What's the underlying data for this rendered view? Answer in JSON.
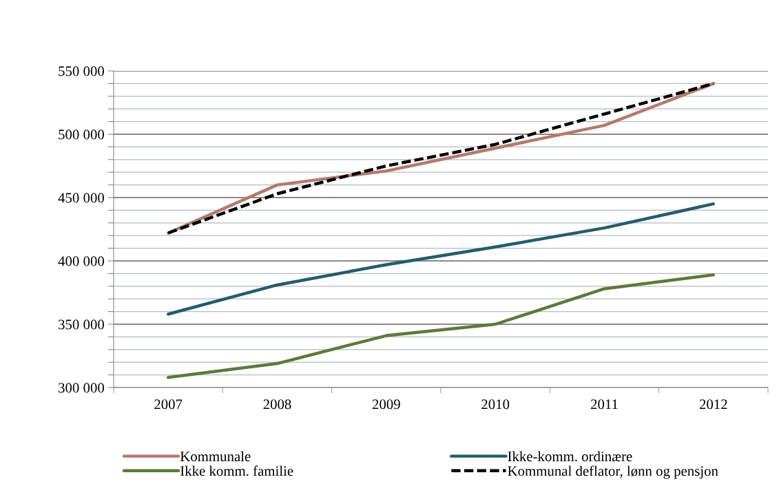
{
  "chart_data": {
    "type": "line",
    "categories": [
      "2007",
      "2008",
      "2009",
      "2010",
      "2011",
      "2012"
    ],
    "series": [
      {
        "name": "Kommunale",
        "color": "#b8786a",
        "values": [
          422000,
          460000,
          471000,
          489000,
          507000,
          540000
        ]
      },
      {
        "name": "Ikke-komm. ordinære",
        "color": "#215d6e",
        "values": [
          358000,
          381000,
          397000,
          411000,
          426000,
          445000
        ]
      },
      {
        "name": "Ikke komm. familie",
        "color": "#5b7b35",
        "values": [
          308000,
          319000,
          341000,
          350000,
          378000,
          389000
        ]
      },
      {
        "name": "Kommunal deflator, lønn og pensjon",
        "color": "#000000",
        "line_style": "dashed",
        "values": [
          422000,
          453000,
          475000,
          492000,
          516000,
          540000
        ]
      }
    ],
    "ylim": [
      300000,
      550000
    ],
    "yticks": [
      {
        "value": 300000,
        "label": "300 000"
      },
      {
        "value": 310000,
        "label": null
      },
      {
        "value": 320000,
        "label": null
      },
      {
        "value": 330000,
        "label": null
      },
      {
        "value": 340000,
        "label": null
      },
      {
        "value": 350000,
        "label": "350 000"
      },
      {
        "value": 360000,
        "label": null
      },
      {
        "value": 370000,
        "label": null
      },
      {
        "value": 380000,
        "label": null
      },
      {
        "value": 390000,
        "label": null
      },
      {
        "value": 400000,
        "label": "400 000"
      },
      {
        "value": 410000,
        "label": null
      },
      {
        "value": 420000,
        "label": null
      },
      {
        "value": 430000,
        "label": null
      },
      {
        "value": 440000,
        "label": null
      },
      {
        "value": 450000,
        "label": "450 000"
      },
      {
        "value": 460000,
        "label": null
      },
      {
        "value": 470000,
        "label": null
      },
      {
        "value": 480000,
        "label": null
      },
      {
        "value": 490000,
        "label": null
      },
      {
        "value": 500000,
        "label": "500 000"
      },
      {
        "value": 510000,
        "label": null
      },
      {
        "value": 520000,
        "label": null
      },
      {
        "value": 530000,
        "label": null
      },
      {
        "value": 540000,
        "label": null
      },
      {
        "value": 550000,
        "label": "550 000"
      }
    ],
    "grid": "y",
    "legend": "bottom",
    "marker": "none",
    "line_style": "solid"
  }
}
